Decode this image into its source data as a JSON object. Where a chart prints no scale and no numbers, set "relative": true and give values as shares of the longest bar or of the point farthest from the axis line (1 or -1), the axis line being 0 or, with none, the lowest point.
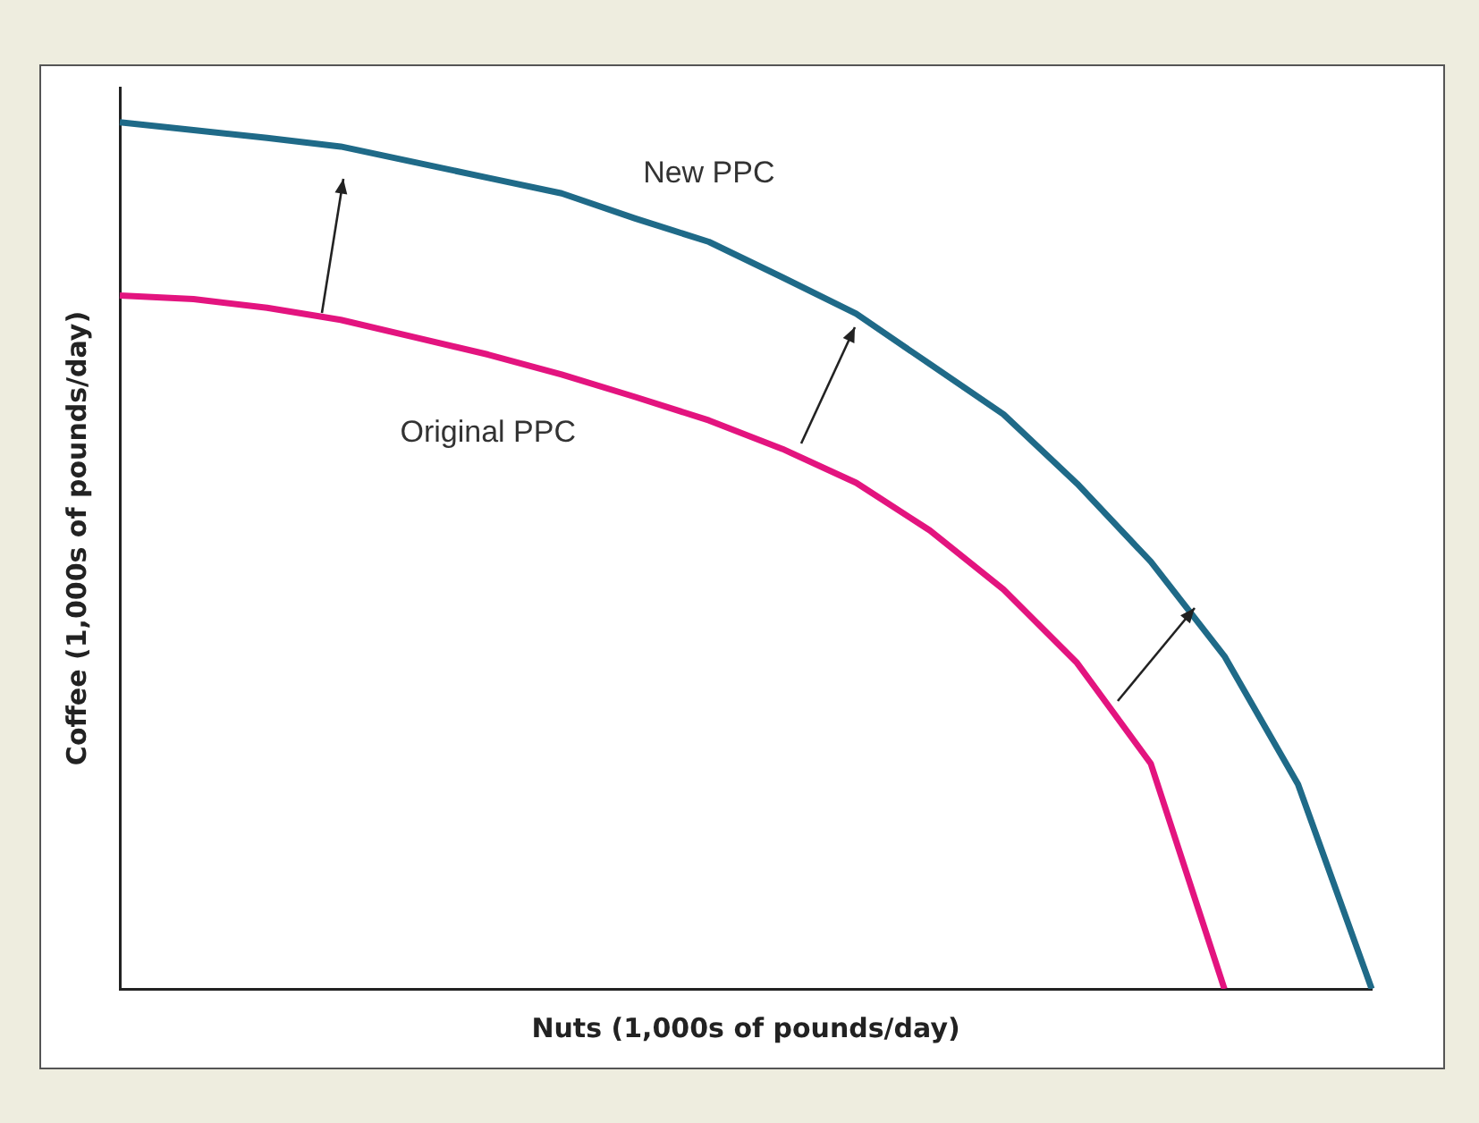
{
  "chart_data": {
    "type": "line",
    "relative": true,
    "xlabel": "Nuts (1,000s of pounds/day)",
    "ylabel": "Coffee (1,000s of pounds/day)",
    "grid": false,
    "legend": false,
    "marker": "none",
    "categories": [
      null,
      null,
      null,
      null,
      null,
      null,
      null,
      null,
      null,
      null,
      null,
      null,
      null,
      null,
      null,
      null,
      null,
      null
    ],
    "series": [
      {
        "name": "New PPC",
        "color": "#1f6a88",
        "values": [
          1,
          0.991,
          0.982,
          0.972,
          0.954,
          0.936,
          0.918,
          0.889,
          0.862,
          0.821,
          0.779,
          0.721,
          0.663,
          0.583,
          0.493,
          0.384,
          0.236,
          0
        ]
      },
      {
        "name": "Original PPC",
        "color": "#e3147f",
        "values": [
          0.8,
          0.796,
          0.786,
          0.772,
          0.752,
          0.732,
          0.709,
          0.683,
          0.656,
          0.623,
          0.584,
          0.529,
          0.461,
          0.376,
          0.26,
          0,
          null,
          null
        ]
      }
    ]
  }
}
